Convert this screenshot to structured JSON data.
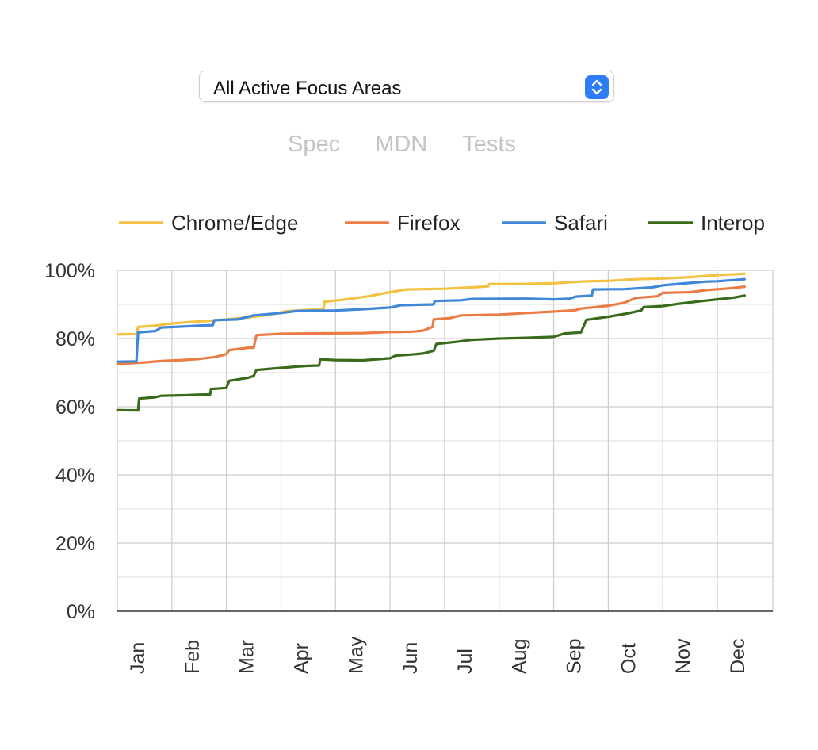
{
  "selector": {
    "value": "All Active Focus Areas",
    "arrow_color": "#2f7df6"
  },
  "tabs": [
    {
      "label": "Spec"
    },
    {
      "label": "MDN"
    },
    {
      "label": "Tests"
    }
  ],
  "chart_data": {
    "type": "line",
    "title": "",
    "xlabel": "",
    "ylabel": "",
    "ylim": [
      0,
      100
    ],
    "yticks": [
      "0%",
      "20%",
      "40%",
      "60%",
      "80%",
      "100%"
    ],
    "xticks": [
      "Jan",
      "Feb",
      "Mar",
      "Apr",
      "May",
      "Jun",
      "Jul",
      "Aug",
      "Sep",
      "Oct",
      "Nov",
      "Dec"
    ],
    "grid": true,
    "legend_position": "top",
    "x_unit": "month",
    "series": [
      {
        "name": "Chrome/Edge",
        "color": "#f3c242",
        "points": [
          [
            0,
            81.2
          ],
          [
            0.35,
            81.3
          ],
          [
            0.38,
            83.4
          ],
          [
            0.7,
            83.8
          ],
          [
            1.0,
            84.4
          ],
          [
            1.3,
            84.8
          ],
          [
            1.6,
            85.1
          ],
          [
            2.0,
            85.6
          ],
          [
            2.4,
            86.2
          ],
          [
            2.8,
            87.0
          ],
          [
            3.1,
            88.0
          ],
          [
            3.5,
            88.4
          ],
          [
            3.78,
            88.6
          ],
          [
            3.8,
            90.8
          ],
          [
            4.2,
            91.5
          ],
          [
            4.6,
            92.4
          ],
          [
            5.0,
            93.6
          ],
          [
            5.3,
            94.4
          ],
          [
            6.0,
            94.6
          ],
          [
            6.5,
            95.0
          ],
          [
            6.8,
            95.3
          ],
          [
            6.82,
            96.0
          ],
          [
            7.4,
            96.0
          ],
          [
            8.0,
            96.2
          ],
          [
            8.6,
            96.8
          ],
          [
            9.0,
            96.9
          ],
          [
            9.5,
            97.4
          ],
          [
            10.0,
            97.6
          ],
          [
            10.5,
            98.0
          ],
          [
            11.0,
            98.6
          ],
          [
            11.5,
            99.0
          ]
        ]
      },
      {
        "name": "Firefox",
        "color": "#ec7c46",
        "points": [
          [
            0,
            72.5
          ],
          [
            0.5,
            73.0
          ],
          [
            0.8,
            73.4
          ],
          [
            1.2,
            73.7
          ],
          [
            1.5,
            74.0
          ],
          [
            1.8,
            74.6
          ],
          [
            2.0,
            75.4
          ],
          [
            2.05,
            76.6
          ],
          [
            2.4,
            77.3
          ],
          [
            2.5,
            77.3
          ],
          [
            2.55,
            81.0
          ],
          [
            3.0,
            81.4
          ],
          [
            3.5,
            81.5
          ],
          [
            4.5,
            81.6
          ],
          [
            5.0,
            81.9
          ],
          [
            5.4,
            82.0
          ],
          [
            5.6,
            82.3
          ],
          [
            5.78,
            83.4
          ],
          [
            5.8,
            85.6
          ],
          [
            6.1,
            86.0
          ],
          [
            6.3,
            86.8
          ],
          [
            7.0,
            87.0
          ],
          [
            7.5,
            87.5
          ],
          [
            8.0,
            87.9
          ],
          [
            8.4,
            88.3
          ],
          [
            8.5,
            88.8
          ],
          [
            9.0,
            89.6
          ],
          [
            9.3,
            90.5
          ],
          [
            9.5,
            91.9
          ],
          [
            9.9,
            92.4
          ],
          [
            10.0,
            93.4
          ],
          [
            10.5,
            93.6
          ],
          [
            10.8,
            94.2
          ],
          [
            11.2,
            94.7
          ],
          [
            11.5,
            95.2
          ]
        ]
      },
      {
        "name": "Safari",
        "color": "#3f87d9",
        "points": [
          [
            0,
            73.2
          ],
          [
            0.35,
            73.3
          ],
          [
            0.38,
            81.8
          ],
          [
            0.7,
            82.2
          ],
          [
            0.8,
            83.2
          ],
          [
            1.3,
            83.6
          ],
          [
            1.5,
            83.8
          ],
          [
            1.75,
            83.9
          ],
          [
            1.78,
            85.4
          ],
          [
            2.2,
            85.6
          ],
          [
            2.5,
            86.8
          ],
          [
            3.0,
            87.5
          ],
          [
            3.3,
            88.1
          ],
          [
            4.0,
            88.2
          ],
          [
            4.5,
            88.6
          ],
          [
            5.0,
            89.1
          ],
          [
            5.2,
            89.8
          ],
          [
            5.8,
            90.0
          ],
          [
            5.82,
            91.0
          ],
          [
            6.3,
            91.2
          ],
          [
            6.5,
            91.6
          ],
          [
            7.5,
            91.7
          ],
          [
            8.0,
            91.5
          ],
          [
            8.3,
            91.7
          ],
          [
            8.4,
            92.3
          ],
          [
            8.7,
            92.6
          ],
          [
            8.72,
            94.4
          ],
          [
            9.3,
            94.5
          ],
          [
            9.8,
            95.0
          ],
          [
            10.0,
            95.6
          ],
          [
            10.5,
            96.3
          ],
          [
            10.8,
            96.7
          ],
          [
            11.0,
            96.8
          ],
          [
            11.5,
            97.4
          ]
        ]
      },
      {
        "name": "Interop",
        "color": "#3a6b1a",
        "points": [
          [
            0,
            59.0
          ],
          [
            0.38,
            58.9
          ],
          [
            0.4,
            62.4
          ],
          [
            0.7,
            62.8
          ],
          [
            0.8,
            63.2
          ],
          [
            1.3,
            63.4
          ],
          [
            1.45,
            63.5
          ],
          [
            1.7,
            63.6
          ],
          [
            1.72,
            65.2
          ],
          [
            2.0,
            65.5
          ],
          [
            2.05,
            67.6
          ],
          [
            2.4,
            68.5
          ],
          [
            2.5,
            69.0
          ],
          [
            2.55,
            70.8
          ],
          [
            3.0,
            71.4
          ],
          [
            3.3,
            71.8
          ],
          [
            3.5,
            72.0
          ],
          [
            3.7,
            72.1
          ],
          [
            3.72,
            73.9
          ],
          [
            4.0,
            73.7
          ],
          [
            4.5,
            73.6
          ],
          [
            5.0,
            74.2
          ],
          [
            5.1,
            75.0
          ],
          [
            5.4,
            75.3
          ],
          [
            5.6,
            75.6
          ],
          [
            5.8,
            76.4
          ],
          [
            5.85,
            78.4
          ],
          [
            6.2,
            79.0
          ],
          [
            6.5,
            79.6
          ],
          [
            7.0,
            80.0
          ],
          [
            7.5,
            80.2
          ],
          [
            8.0,
            80.5
          ],
          [
            8.2,
            81.5
          ],
          [
            8.5,
            81.8
          ],
          [
            8.6,
            85.5
          ],
          [
            9.0,
            86.4
          ],
          [
            9.3,
            87.2
          ],
          [
            9.6,
            88.2
          ],
          [
            9.65,
            89.2
          ],
          [
            10.0,
            89.5
          ],
          [
            10.3,
            90.2
          ],
          [
            10.6,
            90.8
          ],
          [
            11.0,
            91.5
          ],
          [
            11.3,
            92.0
          ],
          [
            11.5,
            92.6
          ]
        ]
      }
    ]
  }
}
